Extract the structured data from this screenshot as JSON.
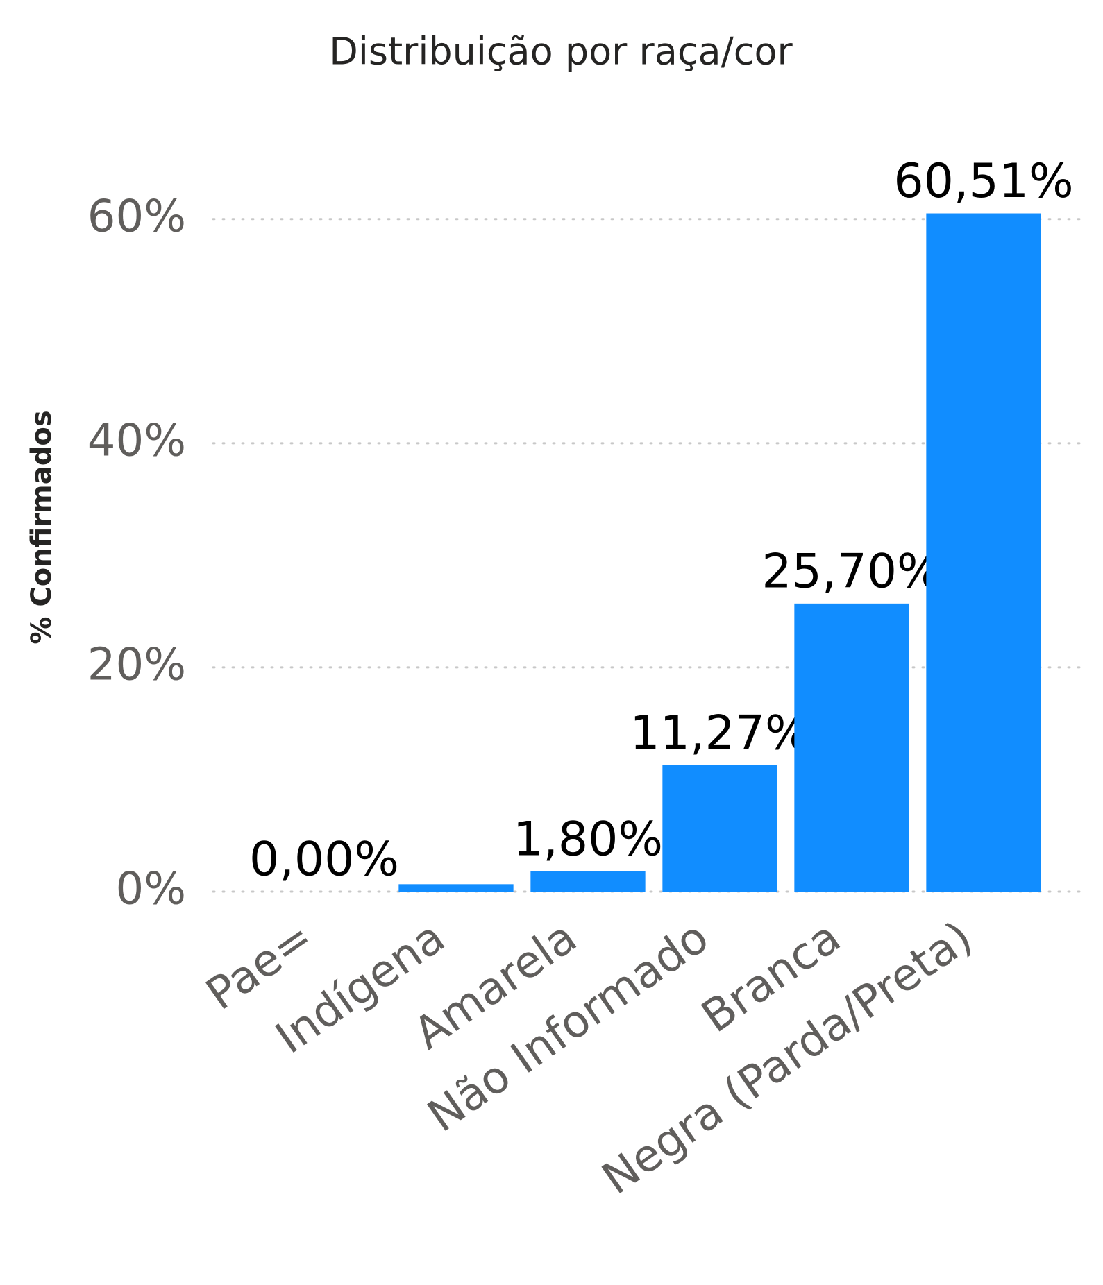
{
  "chart_data": {
    "type": "bar",
    "title": "Distribuição por raça/cor",
    "y_label": "% Confirmados",
    "categories": [
      "Pae=",
      "Indígena",
      "Amarela",
      "Não Informado",
      "Branca",
      "Negra (Parda/Preta)"
    ],
    "values": [
      0,
      0.66,
      1.8,
      11.27,
      25.7,
      60.51
    ],
    "value_labels": [
      "0,00%",
      null,
      "1,80%",
      "11,27%",
      "25,70%",
      "60,51%"
    ],
    "color": "#118DFF",
    "ylim": [
      0,
      65
    ],
    "yticks": [
      {
        "value": 0,
        "label": "0%"
      },
      {
        "value": 20,
        "label": "20%"
      },
      {
        "value": 40,
        "label": "40%"
      },
      {
        "value": 60,
        "label": "60%"
      }
    ],
    "grid": true
  }
}
